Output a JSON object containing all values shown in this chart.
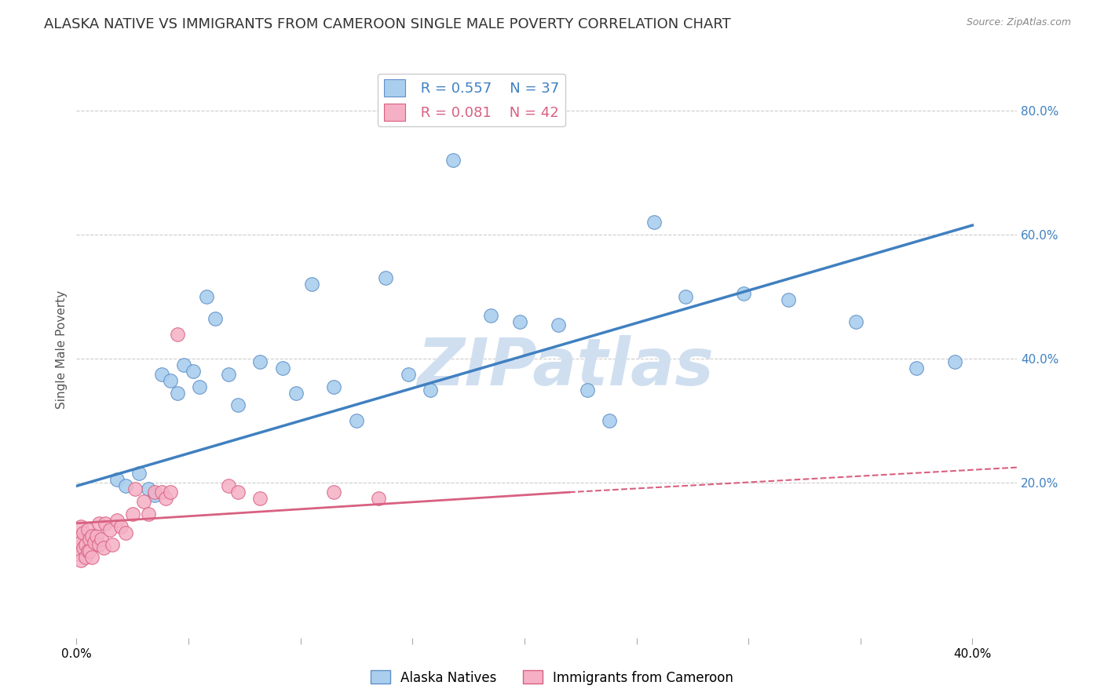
{
  "title": "ALASKA NATIVE VS IMMIGRANTS FROM CAMEROON SINGLE MALE POVERTY CORRELATION CHART",
  "source": "Source: ZipAtlas.com",
  "ylabel": "Single Male Poverty",
  "ytick_values": [
    0.2,
    0.4,
    0.6,
    0.8
  ],
  "xlim": [
    0.0,
    0.42
  ],
  "ylim": [
    -0.05,
    0.88
  ],
  "legend_blue_r": "R = 0.557",
  "legend_blue_n": "N = 37",
  "legend_pink_r": "R = 0.081",
  "legend_pink_n": "N = 42",
  "legend1_label": "Alaska Natives",
  "legend2_label": "Immigrants from Cameroon",
  "watermark": "ZIPatlas",
  "blue_line_x0": 0.0,
  "blue_line_y0": 0.195,
  "blue_line_x1": 0.4,
  "blue_line_y1": 0.615,
  "pink_line_solid_x0": 0.0,
  "pink_line_solid_y0": 0.135,
  "pink_line_solid_x1": 0.22,
  "pink_line_solid_y1": 0.185,
  "pink_line_dash_x0": 0.22,
  "pink_line_dash_y0": 0.185,
  "pink_line_dash_x1": 0.42,
  "pink_line_dash_y1": 0.225,
  "blue_scatter_x": [
    0.018,
    0.022,
    0.028,
    0.032,
    0.035,
    0.038,
    0.042,
    0.045,
    0.048,
    0.052,
    0.055,
    0.058,
    0.062,
    0.068,
    0.072,
    0.082,
    0.092,
    0.098,
    0.105,
    0.115,
    0.125,
    0.138,
    0.148,
    0.158,
    0.168,
    0.185,
    0.198,
    0.215,
    0.228,
    0.238,
    0.258,
    0.272,
    0.298,
    0.318,
    0.348,
    0.375,
    0.392
  ],
  "blue_scatter_y": [
    0.205,
    0.195,
    0.215,
    0.19,
    0.18,
    0.375,
    0.365,
    0.345,
    0.39,
    0.38,
    0.355,
    0.5,
    0.465,
    0.375,
    0.325,
    0.395,
    0.385,
    0.345,
    0.52,
    0.355,
    0.3,
    0.53,
    0.375,
    0.35,
    0.72,
    0.47,
    0.46,
    0.455,
    0.35,
    0.3,
    0.62,
    0.5,
    0.505,
    0.495,
    0.46,
    0.385,
    0.395
  ],
  "pink_scatter_x": [
    0.001,
    0.001,
    0.001,
    0.002,
    0.002,
    0.002,
    0.003,
    0.003,
    0.004,
    0.004,
    0.005,
    0.005,
    0.006,
    0.006,
    0.007,
    0.007,
    0.008,
    0.009,
    0.01,
    0.01,
    0.011,
    0.012,
    0.013,
    0.015,
    0.016,
    0.018,
    0.02,
    0.022,
    0.025,
    0.026,
    0.03,
    0.032,
    0.035,
    0.038,
    0.04,
    0.042,
    0.045,
    0.068,
    0.072,
    0.082,
    0.115,
    0.135
  ],
  "pink_scatter_y": [
    0.115,
    0.1,
    0.085,
    0.13,
    0.105,
    0.075,
    0.12,
    0.095,
    0.1,
    0.08,
    0.125,
    0.09,
    0.11,
    0.09,
    0.115,
    0.08,
    0.105,
    0.115,
    0.135,
    0.1,
    0.11,
    0.095,
    0.135,
    0.125,
    0.1,
    0.14,
    0.13,
    0.12,
    0.15,
    0.19,
    0.17,
    0.15,
    0.185,
    0.185,
    0.175,
    0.185,
    0.44,
    0.195,
    0.185,
    0.175,
    0.185,
    0.175
  ],
  "blue_color": "#aacfee",
  "pink_color": "#f5b0c5",
  "blue_edge_color": "#6090c8",
  "pink_edge_color": "#d86080",
  "blue_line_color": "#4080c0",
  "pink_line_color": "#d86080",
  "grid_color": "#cccccc",
  "background_color": "#ffffff",
  "title_fontsize": 13,
  "label_fontsize": 11,
  "tick_fontsize": 11,
  "watermark_color": "#d0dff0",
  "watermark_fontsize": 60
}
